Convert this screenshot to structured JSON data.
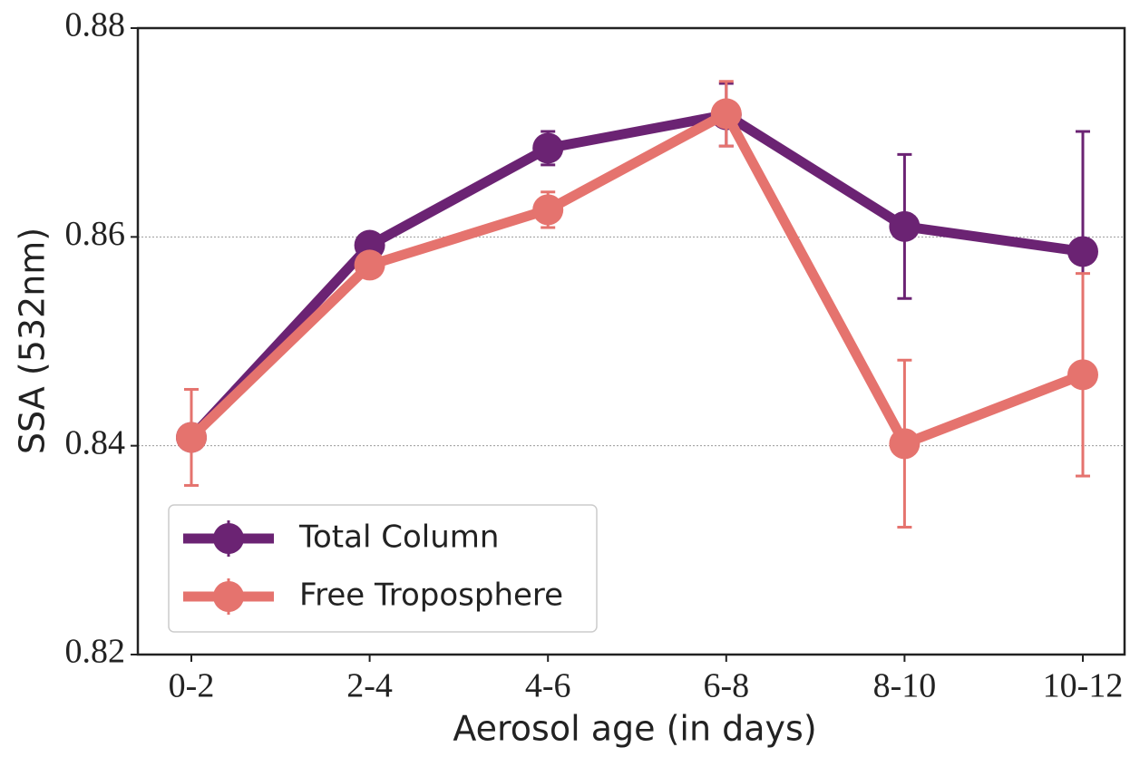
{
  "chart_data": {
    "type": "line",
    "x_label": "Aerosol age (in days)",
    "y_label": "SSA (532nm)",
    "categories": [
      "0-2",
      "2-4",
      "4-6",
      "6-8",
      "8-10",
      "10-12"
    ],
    "series": [
      {
        "name": "Total Column",
        "color": "#6b2373",
        "values": [
          0.8408,
          0.8592,
          0.8685,
          0.8717,
          0.861,
          0.8586
        ],
        "error": [
          0.0,
          0.0005,
          0.0016,
          0.003,
          0.0069,
          0.0115
        ]
      },
      {
        "name": "Free Troposphere",
        "color": "#e5736e",
        "values": [
          0.8408,
          0.8573,
          0.8626,
          0.8718,
          0.8402,
          0.8468
        ],
        "error": [
          0.0046,
          0.0005,
          0.0017,
          0.0031,
          0.008,
          0.0097
        ]
      }
    ],
    "ylim": [
      0.82,
      0.88
    ],
    "yticks": [
      0.82,
      0.84,
      0.86,
      0.88
    ],
    "grid": true,
    "legend": "lower left"
  }
}
